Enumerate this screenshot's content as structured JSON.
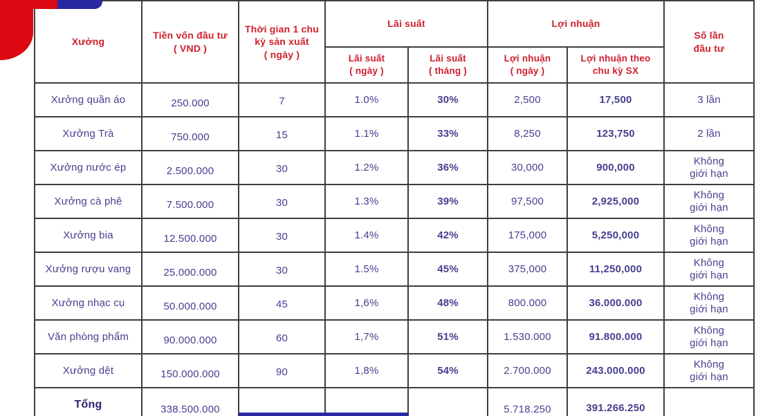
{
  "decorations": {
    "red_blob_color": "#dc0913",
    "topbar_red_color": "#dc0913",
    "topbar_blue_color": "#2b28a3",
    "bottom_bar_color": "#2b28a3"
  },
  "colors": {
    "header_text": "#cf1f2b",
    "body_text": "#46408f",
    "bold_text": "#2b2472",
    "grid_border": "#3d3d3d",
    "background": "#ffffff"
  },
  "table": {
    "headers": {
      "workshop": "Xưởng",
      "capital": "Tiền vốn đầu tư\n( VND )",
      "cycle_time": "Thời gian 1 chu\nkỳ sản xuất\n( ngày )",
      "interest_group": "Lãi suất",
      "interest_day": "Lãi suất\n( ngày )",
      "interest_month": "Lãi suất\n( tháng )",
      "profit_group": "Lợi nhuận",
      "profit_day": "Lợi nhuận\n( ngày )",
      "profit_cycle": "Lợi nhuận theo\nchu kỳ SX",
      "invest_count": "Số lần\nđầu tư"
    },
    "rows": [
      [
        "Xưởng quần áo",
        "250.000",
        "7",
        "1.0%",
        "30%",
        "2,500",
        "17,500",
        "3 lần"
      ],
      [
        "Xưởng Trà",
        "750.000",
        "15",
        "1.1%",
        "33%",
        "8,250",
        "123,750",
        "2 lần"
      ],
      [
        "Xưởng nước ép",
        "2.500.000",
        "30",
        "1.2%",
        "36%",
        "30,000",
        "900,000",
        "Không\ngiới hạn"
      ],
      [
        "Xưởng cà phê",
        "7.500.000",
        "30",
        "1.3%",
        "39%",
        "97,500",
        "2,925,000",
        "Không\ngiới hạn"
      ],
      [
        "Xưởng bia",
        "12.500.000",
        "30",
        "1.4%",
        "42%",
        "175,000",
        "5,250,000",
        "Không\ngiới hạn"
      ],
      [
        "Xưởng rượu vang",
        "25.000.000",
        "30",
        "1.5%",
        "45%",
        "375,000",
        "11,250,000",
        "Không\ngiới hạn"
      ],
      [
        "Xưởng nhạc cụ",
        "50.000.000",
        "45",
        "1,6%",
        "48%",
        "800.000",
        "36.000.000",
        "Không\ngiới hạn"
      ],
      [
        "Văn phòng phẩm",
        "90.000.000",
        "60",
        "1,7%",
        "51%",
        "1.530.000",
        "91.800.000",
        "Không\ngiới hạn"
      ],
      [
        "Xưởng dệt",
        "150.000.000",
        "90",
        "1,8%",
        "54%",
        "2.700.000",
        "243.000.000",
        "Không\ngiới hạn"
      ]
    ],
    "total_row": [
      "Tổng",
      "338.500.000",
      "",
      "",
      "",
      "5.718.250",
      "391.266.250",
      ""
    ]
  }
}
